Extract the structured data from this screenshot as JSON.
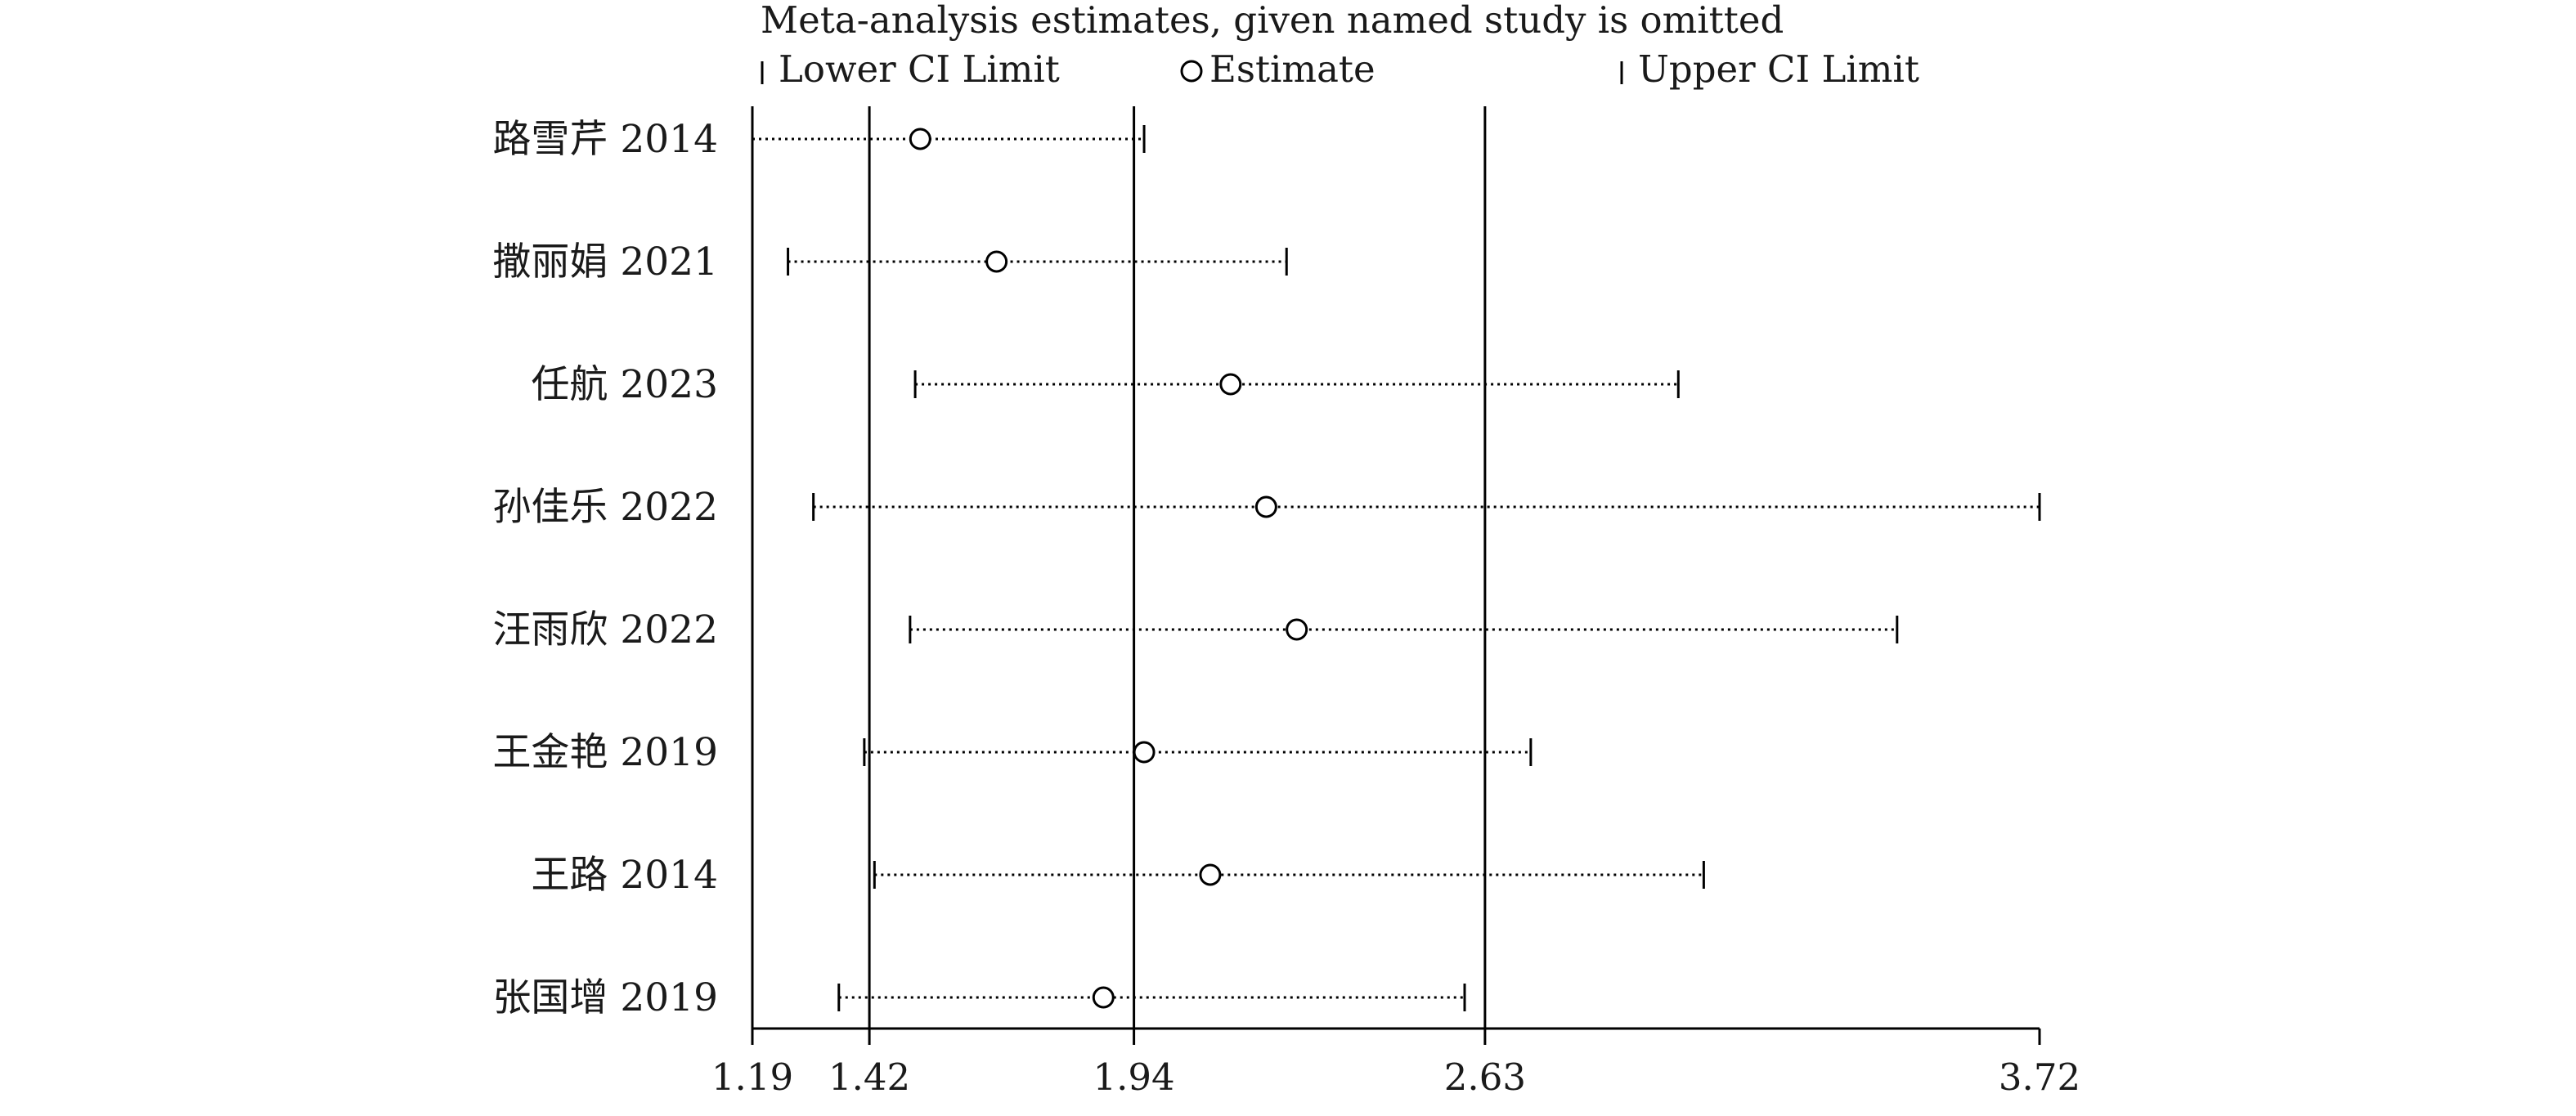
{
  "chart_data": {
    "type": "scatter",
    "title": "Meta-analysis estimates, given named study is omitted",
    "legend": {
      "lower": "Lower CI Limit",
      "estimate": "Estimate",
      "upper": "Upper CI Limit",
      "placement": "top"
    },
    "x_ticks": [
      1.19,
      1.42,
      1.94,
      2.63,
      3.72
    ],
    "x_tick_labels": [
      "1.19",
      "1.42",
      "1.94",
      "2.63",
      "3.72"
    ],
    "xlim": [
      1.19,
      3.72
    ],
    "reference_lines": [
      1.42,
      1.94,
      2.63
    ],
    "studies": [
      {
        "label": "路雪芹 2014",
        "lower": 1.19,
        "estimate": 1.52,
        "upper": 1.96
      },
      {
        "label": "撒丽娟 2021",
        "lower": 1.26,
        "estimate": 1.67,
        "upper": 2.24
      },
      {
        "label": "任航 2023",
        "lower": 1.51,
        "estimate": 2.13,
        "upper": 3.01
      },
      {
        "label": "孙佳乐 2022",
        "lower": 1.31,
        "estimate": 2.2,
        "upper": 3.72
      },
      {
        "label": "汪雨欣 2022",
        "lower": 1.5,
        "estimate": 2.26,
        "upper": 3.44
      },
      {
        "label": "王金艳 2019",
        "lower": 1.41,
        "estimate": 1.96,
        "upper": 2.72
      },
      {
        "label": "王路 2014",
        "lower": 1.43,
        "estimate": 2.09,
        "upper": 3.06
      },
      {
        "label": "张国增 2019",
        "lower": 1.36,
        "estimate": 1.88,
        "upper": 2.59
      }
    ]
  }
}
